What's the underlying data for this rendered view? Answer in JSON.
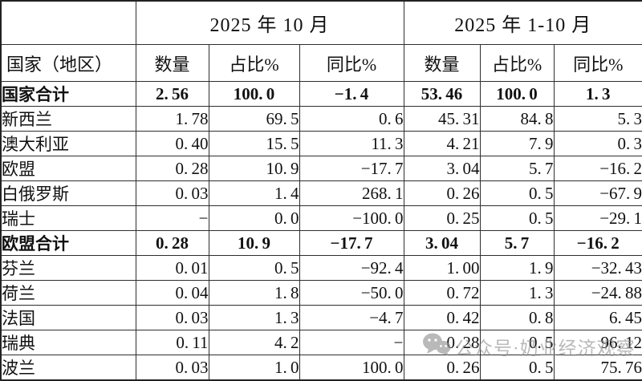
{
  "table": {
    "corner_label": "",
    "period_headers": [
      "2025 年 10 月",
      "2025 年 1-10 月"
    ],
    "row_header": "国家（地区）",
    "columns": [
      "数量",
      "占比%",
      "同比%",
      "数量",
      "占比%",
      "同比%"
    ],
    "rows": [
      {
        "name": "国家合计",
        "bold": true,
        "values": [
          "2.56",
          "100.0",
          "-1.4",
          "53.46",
          "100.0",
          "1.3"
        ]
      },
      {
        "name": "新西兰",
        "bold": false,
        "values": [
          "1.78",
          "69.5",
          "0.6",
          "45.31",
          "84.8",
          "5.3"
        ]
      },
      {
        "name": "澳大利亚",
        "bold": false,
        "values": [
          "0.40",
          "15.5",
          "11.3",
          "4.21",
          "7.9",
          "0.3"
        ]
      },
      {
        "name": "欧盟",
        "bold": false,
        "values": [
          "0.28",
          "10.9",
          "-17.7",
          "3.04",
          "5.7",
          "-16.2"
        ]
      },
      {
        "name": "白俄罗斯",
        "bold": false,
        "values": [
          "0.03",
          "1.4",
          "268.1",
          "0.26",
          "0.5",
          "-67.9"
        ]
      },
      {
        "name": "瑞士",
        "bold": false,
        "values": [
          "-",
          "0.0",
          "-100.0",
          "0.25",
          "0.5",
          "-29.1"
        ]
      },
      {
        "name": "欧盟合计",
        "bold": true,
        "values": [
          "0.28",
          "10.9",
          "-17.7",
          "3.04",
          "5.7",
          "-16.2"
        ]
      },
      {
        "name": "芬兰",
        "bold": false,
        "values": [
          "0.01",
          "0.5",
          "-92.4",
          "1.00",
          "1.9",
          "-32.43"
        ]
      },
      {
        "name": "荷兰",
        "bold": false,
        "values": [
          "0.04",
          "1.8",
          "-50.0",
          "0.72",
          "1.3",
          "-24.88"
        ]
      },
      {
        "name": "法国",
        "bold": false,
        "values": [
          "0.03",
          "1.3",
          "-4.7",
          "0.42",
          "0.8",
          "6.45"
        ]
      },
      {
        "name": "瑞典",
        "bold": false,
        "values": [
          "0.11",
          "4.2",
          "-",
          "0.28",
          "0.5",
          "96.12"
        ]
      },
      {
        "name": "波兰",
        "bold": false,
        "values": [
          "0.03",
          "1.0",
          "100.0",
          "0.26",
          "0.5",
          "75.76"
        ]
      }
    ]
  },
  "watermark": {
    "text": "公众号·奶业经济观察",
    "icon": "wechat-icon",
    "color": "#8f8f8f"
  },
  "colors": {
    "border": "#2e2e2e",
    "text": "#111111",
    "background": "#ffffff"
  }
}
